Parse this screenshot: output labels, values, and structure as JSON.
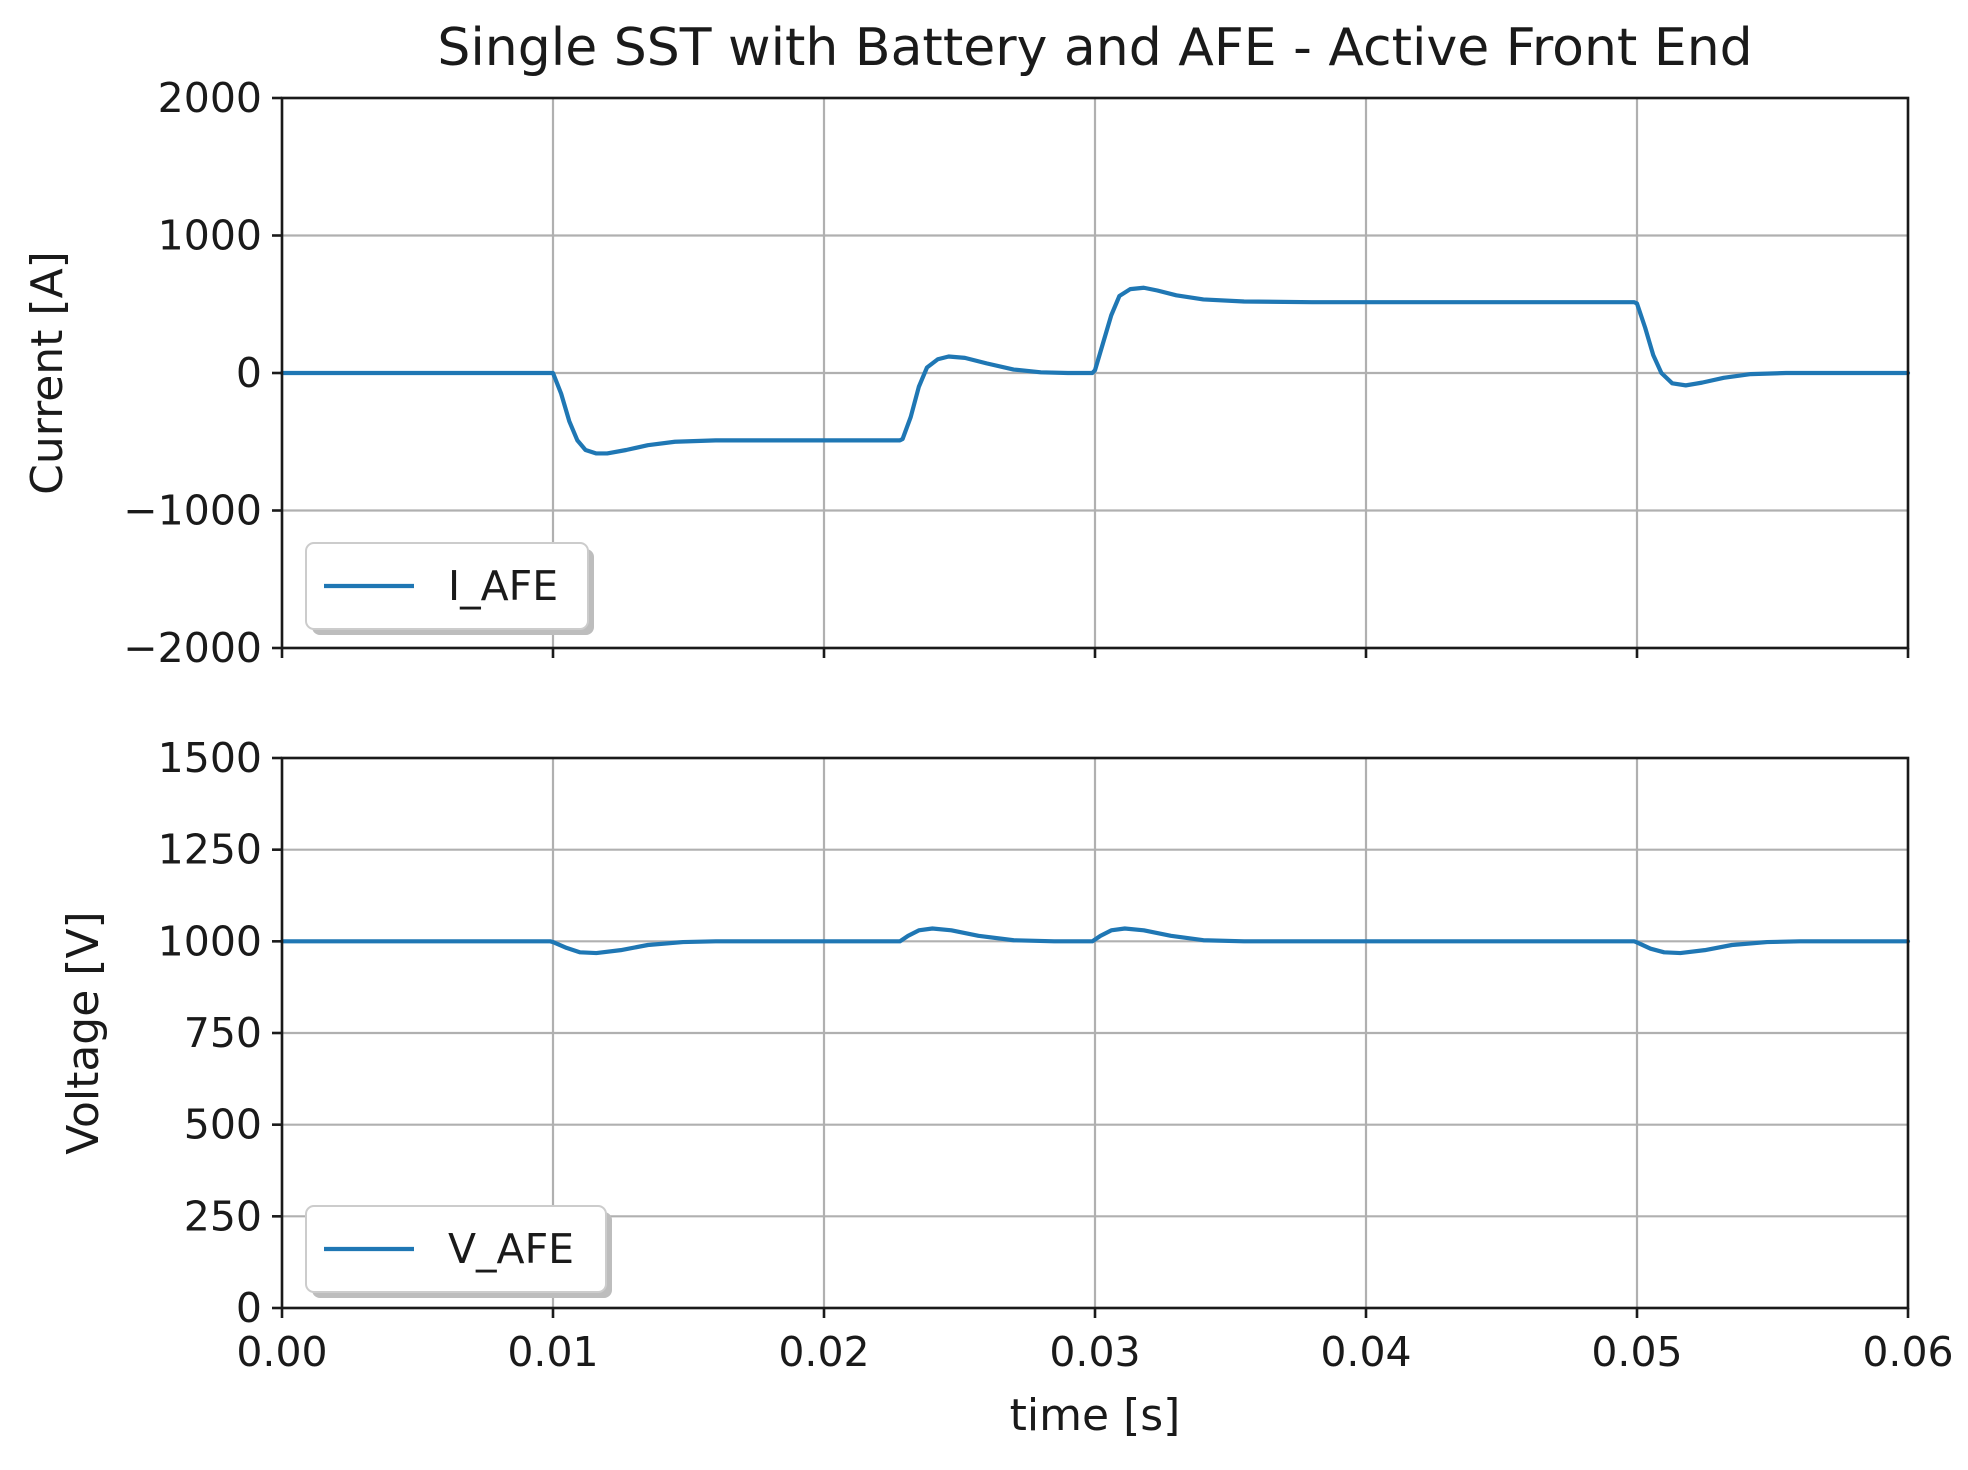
{
  "chart_data": [
    {
      "type": "line",
      "title": "Single SST with Battery and AFE - Active Front End",
      "xlabel": "",
      "ylabel": "Current [A]",
      "xlim": [
        0.0,
        0.06
      ],
      "ylim": [
        -2000,
        2000
      ],
      "x_ticks": [
        0.0,
        0.01,
        0.02,
        0.03,
        0.04,
        0.05,
        0.06
      ],
      "x_tick_labels": [],
      "y_ticks": [
        -2000,
        -1000,
        0,
        1000,
        2000
      ],
      "y_tick_labels": [
        "−2000",
        "−1000",
        "0",
        "1000",
        "2000"
      ],
      "grid": true,
      "legend": "bottom-left",
      "series": [
        {
          "name": "I_AFE",
          "color": "#1f77b4",
          "points": [
            [
              0.0,
              0
            ],
            [
              0.0099,
              0
            ],
            [
              0.01,
              0
            ],
            [
              0.0103,
              -150
            ],
            [
              0.0106,
              -350
            ],
            [
              0.0109,
              -490
            ],
            [
              0.0112,
              -560
            ],
            [
              0.0116,
              -585
            ],
            [
              0.012,
              -585
            ],
            [
              0.0127,
              -560
            ],
            [
              0.0135,
              -525
            ],
            [
              0.0145,
              -500
            ],
            [
              0.016,
              -490
            ],
            [
              0.019,
              -490
            ],
            [
              0.0228,
              -490
            ],
            [
              0.0229,
              -480
            ],
            [
              0.0232,
              -320
            ],
            [
              0.0235,
              -100
            ],
            [
              0.0238,
              40
            ],
            [
              0.0242,
              100
            ],
            [
              0.0246,
              120
            ],
            [
              0.0252,
              110
            ],
            [
              0.026,
              70
            ],
            [
              0.027,
              25
            ],
            [
              0.028,
              5
            ],
            [
              0.029,
              0
            ],
            [
              0.0299,
              0
            ],
            [
              0.03,
              20
            ],
            [
              0.0303,
              220
            ],
            [
              0.0306,
              420
            ],
            [
              0.0309,
              560
            ],
            [
              0.0313,
              610
            ],
            [
              0.0318,
              620
            ],
            [
              0.0323,
              600
            ],
            [
              0.033,
              565
            ],
            [
              0.034,
              535
            ],
            [
              0.0355,
              520
            ],
            [
              0.038,
              515
            ],
            [
              0.045,
              515
            ],
            [
              0.0499,
              515
            ],
            [
              0.05,
              505
            ],
            [
              0.0503,
              330
            ],
            [
              0.0506,
              130
            ],
            [
              0.0509,
              0
            ],
            [
              0.0513,
              -75
            ],
            [
              0.0518,
              -90
            ],
            [
              0.0524,
              -70
            ],
            [
              0.0532,
              -35
            ],
            [
              0.0542,
              -8
            ],
            [
              0.0555,
              0
            ],
            [
              0.06,
              0
            ]
          ]
        }
      ]
    },
    {
      "type": "line",
      "title": "",
      "xlabel": "time [s]",
      "ylabel": "Voltage [V]",
      "xlim": [
        0.0,
        0.06
      ],
      "ylim": [
        0,
        1500
      ],
      "x_ticks": [
        0.0,
        0.01,
        0.02,
        0.03,
        0.04,
        0.05,
        0.06
      ],
      "x_tick_labels": [
        "0.00",
        "0.01",
        "0.02",
        "0.03",
        "0.04",
        "0.05",
        "0.06"
      ],
      "y_ticks": [
        0,
        250,
        500,
        750,
        1000,
        1250,
        1500
      ],
      "y_tick_labels": [
        "0",
        "250",
        "500",
        "750",
        "1000",
        "1250",
        "1500"
      ],
      "grid": true,
      "legend": "bottom-left",
      "series": [
        {
          "name": "V_AFE",
          "color": "#1f77b4",
          "points": [
            [
              0.0,
              1000
            ],
            [
              0.0099,
              1000
            ],
            [
              0.01,
              998
            ],
            [
              0.0105,
              982
            ],
            [
              0.011,
              970
            ],
            [
              0.0116,
              968
            ],
            [
              0.0125,
              976
            ],
            [
              0.0135,
              990
            ],
            [
              0.0148,
              998
            ],
            [
              0.016,
              1000
            ],
            [
              0.0228,
              1000
            ],
            [
              0.0231,
              1015
            ],
            [
              0.0235,
              1030
            ],
            [
              0.024,
              1035
            ],
            [
              0.0247,
              1030
            ],
            [
              0.0257,
              1015
            ],
            [
              0.027,
              1003
            ],
            [
              0.0285,
              1000
            ],
            [
              0.0299,
              1000
            ],
            [
              0.0302,
              1015
            ],
            [
              0.0306,
              1030
            ],
            [
              0.0311,
              1035
            ],
            [
              0.0318,
              1030
            ],
            [
              0.0328,
              1015
            ],
            [
              0.034,
              1003
            ],
            [
              0.0355,
              1000
            ],
            [
              0.0499,
              1000
            ],
            [
              0.05,
              997
            ],
            [
              0.0505,
              980
            ],
            [
              0.051,
              970
            ],
            [
              0.0516,
              968
            ],
            [
              0.0525,
              976
            ],
            [
              0.0535,
              990
            ],
            [
              0.0548,
              998
            ],
            [
              0.056,
              1000
            ],
            [
              0.06,
              1000
            ]
          ]
        }
      ]
    }
  ]
}
